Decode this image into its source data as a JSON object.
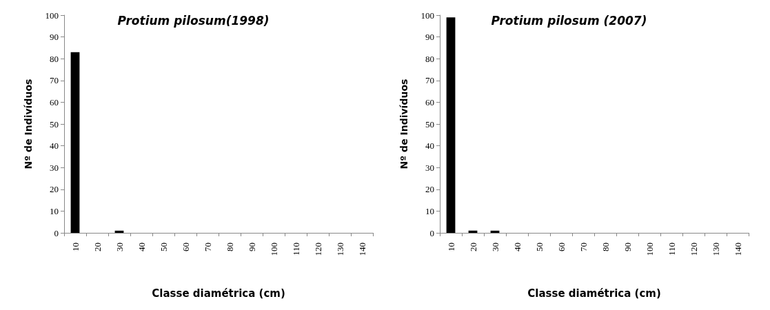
{
  "chart_data": [
    {
      "type": "bar",
      "title": "Protium pilosum(1998)",
      "xlabel": "Classe diamétrica (cm)",
      "ylabel": "Nº de Indivíduos",
      "categories": [
        "10",
        "20",
        "30",
        "40",
        "50",
        "60",
        "70",
        "80",
        "90",
        "100",
        "110",
        "120",
        "130",
        "140"
      ],
      "values": [
        83,
        0,
        1,
        0,
        0,
        0,
        0,
        0,
        0,
        0,
        0,
        0,
        0,
        0
      ],
      "color": "#000000",
      "ylim": [
        0,
        100
      ],
      "yticks": [
        0,
        10,
        20,
        30,
        40,
        50,
        60,
        70,
        80,
        90,
        100
      ],
      "grid": false
    },
    {
      "type": "bar",
      "title": "Protium pilosum (2007)",
      "xlabel": "Classe diamétrica (cm)",
      "ylabel": "Nº de Indivíduos",
      "categories": [
        "10",
        "20",
        "30",
        "40",
        "50",
        "60",
        "70",
        "80",
        "90",
        "100",
        "110",
        "120",
        "130",
        "140"
      ],
      "values": [
        99,
        1,
        1,
        0,
        0,
        0,
        0,
        0,
        0,
        0,
        0,
        0,
        0,
        0
      ],
      "color": "#000000",
      "ylim": [
        0,
        100
      ],
      "yticks": [
        0,
        10,
        20,
        30,
        40,
        50,
        60,
        70,
        80,
        90,
        100
      ],
      "grid": false
    }
  ]
}
